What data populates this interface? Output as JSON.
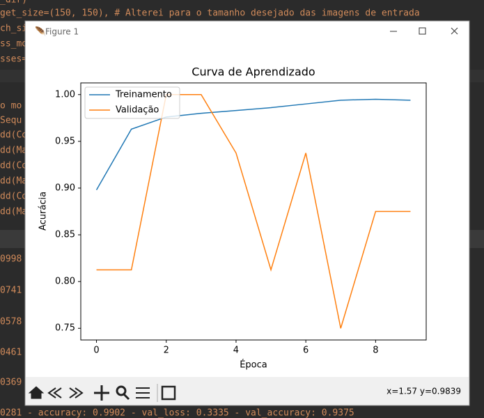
{
  "ide": {
    "lines": [
      "_dir)",
      "get_size=(150, 150),  # Alterei para o tamanho desejado das imagens de entrada",
      "ch_si",
      "ss_mo",
      "sses=",
      "o mo",
      " Sequ",
      "dd(Co",
      "dd(Ma",
      "dd(Co",
      "dd(Ma",
      "dd(Co",
      "dd(Ma",
      "0998",
      "0741",
      "0578",
      "0461",
      "0369",
      "0281 - accuracy: 0.9902 - val_loss: 0.3335 - val_accuracy: 0.9375"
    ]
  },
  "window": {
    "title": "Figure 1",
    "status": "x=1.57 y=0.9839"
  },
  "chart_data": {
    "type": "line",
    "title": "Curva de Aprendizado",
    "x_label": "Época",
    "y_label": "Acurácia",
    "x": [
      0,
      1,
      2,
      3,
      4,
      5,
      6,
      7,
      8,
      9
    ],
    "series": [
      {
        "name": "Treinamento",
        "color": "#1f77b4",
        "values": [
          0.898,
          0.963,
          0.976,
          0.98,
          0.983,
          0.986,
          0.99,
          0.994,
          0.995,
          0.994
        ]
      },
      {
        "name": "Validação",
        "color": "#ff7f0e",
        "values": [
          0.8125,
          0.8125,
          1.0,
          1.0,
          0.9375,
          0.8125,
          0.9375,
          0.75,
          0.875,
          0.875
        ]
      }
    ],
    "xlim": [
      -0.45,
      9.45
    ],
    "ylim": [
      0.7375,
      1.0125
    ],
    "xticks": [
      0,
      2,
      4,
      6,
      8
    ],
    "yticks": [
      {
        "value": 0.75,
        "label": "0.75"
      },
      {
        "value": 0.8,
        "label": "0.80"
      },
      {
        "value": 0.85,
        "label": "0.85"
      },
      {
        "value": 0.9,
        "label": "0.90"
      },
      {
        "value": 0.95,
        "label": "0.95"
      },
      {
        "value": 1.0,
        "label": "1.00"
      }
    ],
    "legend": "upper left"
  }
}
